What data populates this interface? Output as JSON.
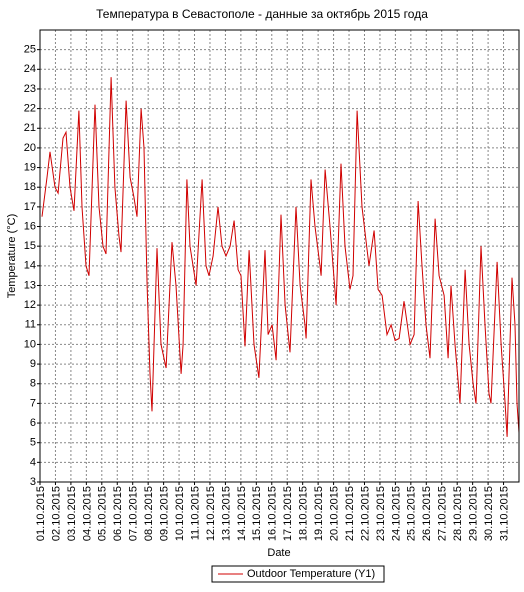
{
  "chart_data": {
    "type": "line",
    "title": "Температура в Севастополе - данные за октябрь 2015 года",
    "x_label": "Date",
    "y_label": "Temperature (°C)",
    "xlim": [
      0,
      31
    ],
    "ylim": [
      3,
      26
    ],
    "yticks": [
      3,
      4,
      5,
      6,
      7,
      8,
      9,
      10,
      11,
      12,
      13,
      14,
      15,
      16,
      17,
      18,
      19,
      20,
      21,
      22,
      23,
      24,
      25
    ],
    "xticks": [
      {
        "value": 0,
        "label": "01.10.2015"
      },
      {
        "value": 1,
        "label": "02.10.2015"
      },
      {
        "value": 2,
        "label": "03.10.2015"
      },
      {
        "value": 3,
        "label": "04.10.2015"
      },
      {
        "value": 4,
        "label": "05.10.2015"
      },
      {
        "value": 5,
        "label": "06.10.2015"
      },
      {
        "value": 6,
        "label": "07.10.2015"
      },
      {
        "value": 7,
        "label": "08.10.2015"
      },
      {
        "value": 8,
        "label": "09.10.2015"
      },
      {
        "value": 9,
        "label": "10.10.2015"
      },
      {
        "value": 10,
        "label": "11.10.2015"
      },
      {
        "value": 11,
        "label": "12.10.2015"
      },
      {
        "value": 12,
        "label": "13.10.2015"
      },
      {
        "value": 13,
        "label": "14.10.2015"
      },
      {
        "value": 14,
        "label": "15.10.2015"
      },
      {
        "value": 15,
        "label": "16.10.2015"
      },
      {
        "value": 16,
        "label": "17.10.2015"
      },
      {
        "value": 17,
        "label": "18.10.2015"
      },
      {
        "value": 18,
        "label": "19.10.2015"
      },
      {
        "value": 19,
        "label": "20.10.2015"
      },
      {
        "value": 20,
        "label": "21.10.2015"
      },
      {
        "value": 21,
        "label": "22.10.2015"
      },
      {
        "value": 22,
        "label": "23.10.2015"
      },
      {
        "value": 23,
        "label": "24.10.2015"
      },
      {
        "value": 24,
        "label": "25.10.2015"
      },
      {
        "value": 25,
        "label": "26.10.2015"
      },
      {
        "value": 26,
        "label": "27.10.2015"
      },
      {
        "value": 27,
        "label": "28.10.2015"
      },
      {
        "value": 28,
        "label": "29.10.2015"
      },
      {
        "value": 29,
        "label": "30.10.2015"
      },
      {
        "value": 30,
        "label": "31.10.2015"
      }
    ],
    "grid": true,
    "legend": "bottom",
    "x": [
      0.13,
      0.45,
      0.65,
      0.97,
      1.17,
      1.49,
      1.68,
      1.94,
      2.2,
      2.52,
      2.72,
      2.98,
      3.17,
      3.56,
      3.82,
      4.08,
      4.27,
      4.6,
      4.85,
      5.11,
      5.24,
      5.57,
      5.83,
      6.08,
      6.28,
      6.54,
      6.73,
      6.93,
      7.12,
      7.25,
      7.57,
      7.83,
      8.16,
      8.54,
      8.8,
      9.13,
      9.26,
      9.51,
      9.71,
      10.1,
      10.49,
      10.74,
      10.94,
      11.2,
      11.52,
      11.78,
      12.04,
      12.3,
      12.56,
      12.82,
      13.01,
      13.27,
      13.53,
      13.85,
      14.17,
      14.56,
      14.76,
      15.02,
      15.28,
      15.6,
      15.86,
      16.18,
      16.57,
      16.83,
      17.15,
      17.22,
      17.54,
      17.8,
      18.12,
      18.19,
      18.45,
      18.77,
      19.16,
      19.48,
      19.74,
      20.06,
      20.26,
      20.52,
      20.84,
      21.29,
      21.62,
      21.88,
      22.14,
      22.46,
      22.72,
      22.98,
      23.24,
      23.56,
      23.95,
      24.21,
      24.47,
      24.72,
      24.98,
      25.24,
      25.57,
      25.83,
      26.15,
      26.41,
      26.6,
      26.86,
      27.18,
      27.51,
      27.77,
      28.03,
      28.22,
      28.54,
      28.8,
      29.06,
      29.19,
      29.58,
      29.84,
      30.1,
      30.23,
      30.55,
      30.74,
      30.87,
      31.0
    ],
    "series": [
      {
        "name": "Outdoor Temperature (Y1)",
        "color": "#d00000",
        "values": [
          16.5,
          18.5,
          19.8,
          18,
          17.7,
          20.5,
          20.8,
          18,
          16.8,
          21.9,
          17,
          14,
          13.5,
          22.2,
          17,
          15,
          14.6,
          23.6,
          18,
          15.5,
          14.7,
          22.4,
          18.5,
          17.5,
          16.5,
          22,
          20,
          13,
          8.5,
          6.6,
          14.9,
          10,
          8.8,
          15.2,
          13,
          8.5,
          10,
          18.4,
          15,
          13,
          18.4,
          14,
          13.5,
          14.5,
          17,
          15,
          14.5,
          15,
          16.3,
          13.8,
          13.5,
          9.9,
          14.8,
          10,
          8.3,
          14.8,
          10.5,
          11,
          9.2,
          16.6,
          12,
          9.6,
          17,
          13,
          11,
          10.3,
          18.4,
          16,
          14,
          13.5,
          18.9,
          16,
          12,
          19.2,
          15,
          12.8,
          13.5,
          21.9,
          17,
          14,
          15.8,
          12.8,
          12.5,
          10.5,
          11,
          10.2,
          10.3,
          12.2,
          10,
          10.5,
          17.3,
          14,
          11,
          9.3,
          16.4,
          13.5,
          12.5,
          9.3,
          13,
          10,
          7,
          13.8,
          10,
          8,
          7,
          15,
          11,
          7.5,
          7,
          14.2,
          10,
          7,
          5.3,
          13.4,
          11,
          7,
          5.5
        ]
      }
    ]
  }
}
